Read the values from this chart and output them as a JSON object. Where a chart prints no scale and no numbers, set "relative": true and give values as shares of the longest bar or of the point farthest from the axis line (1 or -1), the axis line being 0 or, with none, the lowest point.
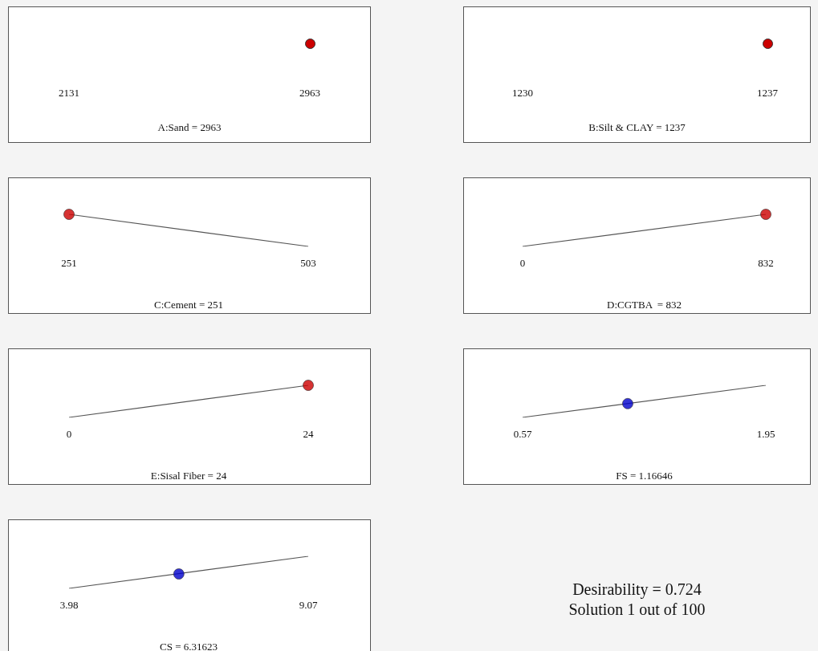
{
  "chart_data": [
    {
      "type": "other",
      "xlabel": "A:Sand = 2963",
      "annotations": [
        "2131",
        "2963"
      ]
    },
    {
      "type": "other",
      "xlabel": "B:Silt & CLAY = 1237",
      "annotations": [
        "1230",
        "1237"
      ]
    },
    {
      "type": "line",
      "xlabel": "C:Cement = 251",
      "xlim": [
        251,
        503
      ],
      "xticks": [
        251,
        503
      ],
      "relative": true,
      "tick_labels": "x",
      "series": [
        {
          "type": "line",
          "color": "#555555",
          "x": [
            251,
            503
          ],
          "values": [
            1,
            0
          ]
        },
        {
          "type": "scatter",
          "color": "#cc0000",
          "x": [
            251
          ],
          "values": [
            1
          ]
        }
      ]
    },
    {
      "type": "line",
      "xlabel": "D:CGTBA  = 832",
      "xlim": [
        0,
        832
      ],
      "xticks": [
        0,
        832
      ],
      "relative": true,
      "tick_labels": "x",
      "series": [
        {
          "type": "line",
          "color": "#555555",
          "x": [
            0,
            832
          ],
          "values": [
            0,
            1
          ]
        },
        {
          "type": "scatter",
          "color": "#cc0000",
          "x": [
            832
          ],
          "values": [
            1
          ]
        }
      ]
    },
    {
      "type": "line",
      "xlabel": "E:Sisal Fiber = 24",
      "xlim": [
        0,
        24
      ],
      "xticks": [
        0,
        24
      ],
      "relative": true,
      "tick_labels": "x",
      "series": [
        {
          "type": "line",
          "color": "#555555",
          "x": [
            0,
            24
          ],
          "values": [
            0,
            1
          ]
        },
        {
          "type": "scatter",
          "color": "#cc0000",
          "x": [
            24
          ],
          "values": [
            1
          ]
        }
      ]
    },
    {
      "type": "line",
      "xlabel": "FS = 1.16646",
      "xlim": [
        0.57,
        1.95
      ],
      "xticks": [
        0.57,
        1.95
      ],
      "relative": true,
      "tick_labels": "x",
      "series": [
        {
          "type": "line",
          "color": "#555555",
          "x": [
            0.57,
            1.95
          ],
          "values": [
            0,
            1
          ]
        },
        {
          "type": "scatter",
          "color": "#0000cc",
          "x": [
            1.16646
          ],
          "values": [
            0.43
          ]
        }
      ]
    },
    {
      "type": "line",
      "xlabel": "CS = 6.31623",
      "xlim": [
        3.98,
        9.07
      ],
      "xticks": [
        3.98,
        9.07
      ],
      "relative": true,
      "tick_labels": "x",
      "series": [
        {
          "type": "line",
          "color": "#555555",
          "x": [
            3.98,
            9.07
          ],
          "values": [
            0,
            1
          ]
        },
        {
          "type": "scatter",
          "color": "#0000cc",
          "x": [
            6.31623
          ],
          "values": [
            0.45
          ]
        }
      ]
    },
    {
      "type": "other",
      "annotations": [
        "Desirability = 0.724",
        "Solution 1 out of 100"
      ]
    }
  ]
}
